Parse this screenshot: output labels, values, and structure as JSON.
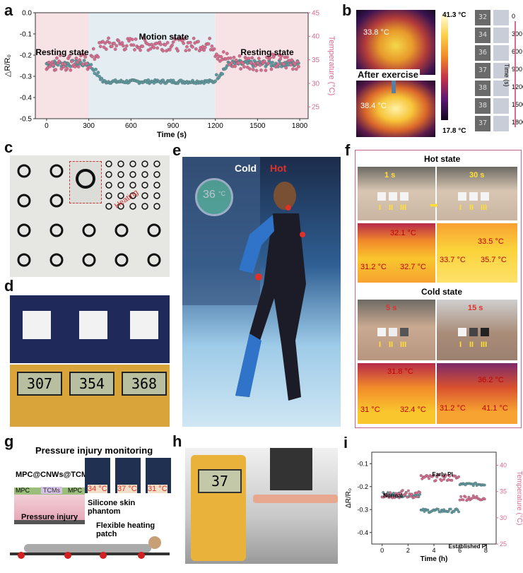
{
  "panels": {
    "a": "a",
    "b": "b",
    "c": "c",
    "d": "d",
    "e": "e",
    "f": "f",
    "g": "g",
    "h": "h",
    "i": "i"
  },
  "chart_data": [
    {
      "id": "a",
      "type": "scatter",
      "xlabel": "Time (s)",
      "ylabel": "△R/R₀",
      "y2label": "Temperature (°C)",
      "xlim": [
        -80,
        1860
      ],
      "ylim": [
        -0.5,
        0.0
      ],
      "y2lim": [
        22.5,
        45
      ],
      "xticks": [
        0,
        300,
        600,
        900,
        1200,
        1500,
        1800
      ],
      "yticks": [
        0.0,
        -0.1,
        -0.2,
        -0.3,
        -0.4,
        -0.5
      ],
      "y2ticks": [
        25,
        30,
        35,
        40,
        45
      ],
      "annotations": [
        "Resting state",
        "Motion state",
        "Resting state"
      ],
      "series": [
        {
          "axis": "left",
          "color": "#5b9aa0",
          "segments": [
            {
              "x0": 0,
              "x1": 300,
              "y": -0.24,
              "spread": 0.015
            },
            {
              "x0": 300,
              "x1": 400,
              "y0": -0.24,
              "y1": -0.32,
              "spread": 0.015
            },
            {
              "x0": 400,
              "x1": 1200,
              "y": -0.325,
              "spread": 0.008
            },
            {
              "x0": 1200,
              "x1": 1300,
              "y0": -0.31,
              "y1": -0.24,
              "spread": 0.015
            },
            {
              "x0": 1300,
              "x1": 1800,
              "y": -0.24,
              "spread": 0.015
            }
          ]
        },
        {
          "axis": "right",
          "color": "#d96b8f",
          "segments": [
            {
              "x0": 0,
              "x1": 300,
              "y": 34.5,
              "spread": 1.8
            },
            {
              "x0": 300,
              "x1": 400,
              "y0": 34.5,
              "y1": 38,
              "spread": 1.8
            },
            {
              "x0": 400,
              "x1": 1200,
              "y": 38.3,
              "spread": 1.4
            },
            {
              "x0": 1200,
              "x1": 1300,
              "y0": 37,
              "y1": 34.5,
              "spread": 1.8
            },
            {
              "x0": 1300,
              "x1": 1800,
              "y": 34.5,
              "spread": 1.8
            }
          ]
        }
      ],
      "shading": [
        {
          "x0": -80,
          "x1": 300,
          "color": "#f7e2e6"
        },
        {
          "x0": 300,
          "x1": 1200,
          "color": "#e4edf2"
        },
        {
          "x0": 1200,
          "x1": 1860,
          "color": "#f7e2e6"
        }
      ]
    },
    {
      "id": "i",
      "type": "scatter",
      "xlabel": "Time (h)",
      "ylabel": "ΔR/R₀",
      "y2label": "Temperature (°C)",
      "xlim": [
        -0.8,
        8.8
      ],
      "ylim": [
        -0.45,
        -0.05
      ],
      "y2lim": [
        25,
        42.5
      ],
      "xticks": [
        0,
        2,
        4,
        6,
        8
      ],
      "yticks": [
        -0.1,
        -0.2,
        -0.3,
        -0.4
      ],
      "y2ticks": [
        25,
        30,
        35,
        40
      ],
      "annotations": [
        "Normal",
        "Early PI",
        "Established PI"
      ],
      "series": [
        {
          "axis": "left",
          "color": "#5b9aa0",
          "segments": [
            {
              "x0": 0,
              "x1": 3,
              "y": -0.235,
              "spread": 0.01
            },
            {
              "x0": 3,
              "x1": 6,
              "y": -0.305,
              "spread": 0.008
            },
            {
              "x0": 6,
              "x1": 8,
              "y": -0.19,
              "spread": 0.006
            }
          ]
        },
        {
          "axis": "right",
          "color": "#d96b8f",
          "segments": [
            {
              "x0": 0,
              "x1": 3,
              "y": 34.5,
              "spread": 0.8
            },
            {
              "x0": 3,
              "x1": 6,
              "y": 37.6,
              "spread": 0.6
            },
            {
              "x0": 6,
              "x1": 8,
              "y": 33.8,
              "spread": 0.5
            }
          ]
        }
      ]
    }
  ],
  "b": {
    "face1_temp": "33.8 °C",
    "after_label": "After exercise",
    "face2_temp": "38.4 °C",
    "scale_max": "41.3 °C",
    "scale_min": "17.8 °C",
    "time_label": "Time (s)",
    "times": [
      "0",
      "300",
      "600",
      "900",
      "1200",
      "1500",
      "1800"
    ],
    "readings": [
      "32",
      "34",
      "36",
      "37",
      "38",
      "38",
      "37"
    ]
  },
  "c": {
    "heating": "Heating"
  },
  "d": {
    "readings": [
      "307",
      "354",
      "368"
    ]
  },
  "e": {
    "cold": "Cold",
    "hot": "Hot",
    "watch_temp": "36",
    "watch_unit": "°C"
  },
  "f": {
    "hot_title": "Hot state",
    "cold_title": "Cold state",
    "hot_times": [
      "1 s",
      "30 s"
    ],
    "cold_times": [
      "5 s",
      "15 s"
    ],
    "roman": [
      "I",
      "II",
      "III"
    ],
    "hot_l": [
      "31.2 °C",
      "32.1 °C",
      "32.7 °C"
    ],
    "hot_r": [
      "33.7 °C",
      "33.5 °C",
      "35.7 °C"
    ],
    "cold_l": [
      "31 °C",
      "31.8 °C",
      "32.4 °C"
    ],
    "cold_r": [
      "31.2 °C",
      "36.2 °C",
      "41.1 °C"
    ]
  },
  "g": {
    "title": "Pressure injury monitoring",
    "material": "MPC@CNWs@TCMs",
    "layer_mpc": "MPC",
    "layer_tcms": "TCMs",
    "temps": [
      "34 °C",
      "37 °C",
      "31 °C"
    ],
    "skin": "Silicone skin phantom",
    "injury": "Pressure injury",
    "heater": "Flexible heating patch"
  },
  "h": {
    "reading": "37"
  }
}
